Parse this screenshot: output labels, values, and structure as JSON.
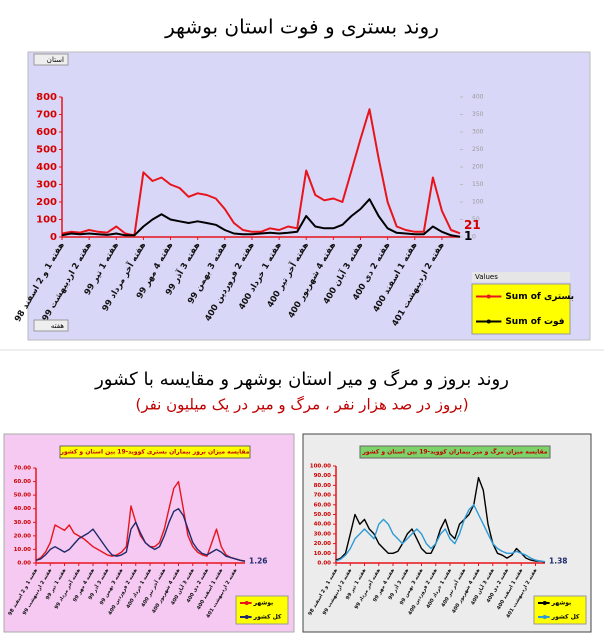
{
  "header": {
    "title": "روند بستری و فوت استان بوشهر"
  },
  "section2": {
    "title": "روند بروز و مرگ و میر استان بوشهر و مقایسه با کشور",
    "subtitle": "(بروز در صد هزار نفر ، مرگ و میر در یک میلیون نفر)"
  },
  "chart_data": [
    {
      "type": "line",
      "filter_label": "استان",
      "legend_title": "Values",
      "x_axis_label": "هفته",
      "categories": [
        "هفته 1 و 2 اسفند 98",
        null,
        null,
        "هفته 2 اردیبهشت 99",
        null,
        null,
        "هفته 1 تیر 99",
        null,
        null,
        "هفته آخر مرداد 99",
        null,
        null,
        "هفته 4 مهر 99",
        null,
        null,
        "هفته 3 آذر 99",
        null,
        null,
        "هفته 3 بهمن 99",
        null,
        null,
        "هفته 2 فروردین 400",
        null,
        null,
        "هفته 1 خرداد 400",
        null,
        null,
        "هفته آخر تیر 400",
        null,
        null,
        "هفته 4 شهریور 400",
        null,
        null,
        "هفته 3 آبان 400",
        null,
        null,
        "هفته 2 دی 400",
        null,
        null,
        "هفته 1 اسفند 400",
        null,
        null,
        "هفته 2 اردیبهشت 401",
        null,
        null
      ],
      "ylim": [
        0,
        800
      ],
      "yticks": [
        0,
        100,
        200,
        300,
        400,
        500,
        600,
        700,
        800
      ],
      "y2lim": [
        0,
        400
      ],
      "y2ticks": [
        0,
        50,
        100,
        150,
        200,
        250,
        300,
        350,
        400
      ],
      "series": [
        {
          "name": "Sum of بستری",
          "color": "#e8141c",
          "end_label": true,
          "values": [
            20,
            30,
            25,
            40,
            30,
            25,
            60,
            20,
            10,
            370,
            320,
            340,
            300,
            280,
            230,
            250,
            240,
            220,
            160,
            80,
            40,
            30,
            30,
            50,
            40,
            60,
            50,
            380,
            240,
            210,
            220,
            200,
            380,
            560,
            730,
            450,
            200,
            60,
            40,
            30,
            30,
            340,
            150,
            40,
            21
          ]
        },
        {
          "name": "Sum of فوت",
          "color": "#000000",
          "axis": "y2",
          "end_label": true,
          "values": [
            5,
            10,
            8,
            10,
            8,
            6,
            10,
            5,
            5,
            30,
            50,
            65,
            50,
            45,
            40,
            45,
            40,
            35,
            20,
            10,
            8,
            8,
            10,
            12,
            10,
            12,
            15,
            60,
            30,
            25,
            25,
            35,
            60,
            80,
            108,
            60,
            25,
            12,
            10,
            8,
            8,
            30,
            15,
            5,
            1
          ]
        }
      ]
    },
    {
      "type": "line",
      "title": "مقایسه میزان بروز بیماران بستری کووید-19 بین استان و کشور",
      "categories": [
        "هفته 1 و 2 اسفند 98",
        null,
        null,
        "هفته 2 اردیبهشت 99",
        null,
        null,
        "هفته 1 تیر 99",
        null,
        null,
        "هفته آخر مرداد 99",
        null,
        null,
        "هفته 4 مهر 99",
        null,
        null,
        "هفته 3 آذر 99",
        null,
        null,
        "هفته 3 بهمن 99",
        null,
        null,
        "هفته 2 فروردین 400",
        null,
        null,
        "هفته 1 خرداد 400",
        null,
        null,
        "هفته آخر تیر 400",
        null,
        null,
        "هفته 4 شهریور 400",
        null,
        null,
        "هفته 3 آبان 400",
        null,
        null,
        "هفته 2 دی 400",
        null,
        null,
        "هفته 1 اسفند 400",
        null,
        null,
        "هفته 2 اردیبهشت 401",
        null,
        null
      ],
      "ylim": [
        0,
        70
      ],
      "yticks": [
        {
          "value": 0,
          "label": "0.00"
        },
        {
          "value": 10,
          "label": "10.00"
        },
        {
          "value": 20,
          "label": "20.00"
        },
        {
          "value": 30,
          "label": "30.00"
        },
        {
          "value": 40,
          "label": "40.00"
        },
        {
          "value": 50,
          "label": "50.00"
        },
        {
          "value": 60,
          "label": "60.00"
        },
        {
          "value": 70,
          "label": "70.00"
        }
      ],
      "series": [
        {
          "name": "بوشهر",
          "color": "#e8141c",
          "values": [
            2,
            4,
            8,
            15,
            28,
            26,
            24,
            28,
            22,
            20,
            18,
            15,
            12,
            10,
            8,
            6,
            5,
            6,
            8,
            12,
            42,
            30,
            20,
            15,
            12,
            12,
            15,
            25,
            40,
            55,
            60,
            40,
            20,
            12,
            8,
            6,
            5,
            15,
            25,
            12,
            6,
            4,
            3,
            2,
            1.5
          ]
        },
        {
          "name": "کل کشور",
          "color": "#1f2a6b",
          "end_label": true,
          "values": [
            2,
            3,
            6,
            10,
            12,
            10,
            8,
            10,
            14,
            18,
            20,
            22,
            25,
            20,
            15,
            10,
            6,
            5,
            6,
            8,
            25,
            30,
            22,
            15,
            12,
            10,
            12,
            20,
            30,
            38,
            40,
            35,
            25,
            15,
            10,
            7,
            6,
            8,
            10,
            8,
            5,
            4,
            3,
            2,
            1.26
          ]
        }
      ]
    },
    {
      "type": "line",
      "title": "مقایسه میزان مرگ و میر بیماران کووید-19 بین استان و کشور",
      "categories": [
        "هفته 1 و 2 اسفند 98",
        null,
        null,
        "هفته 2 اردیبهشت 99",
        null,
        null,
        "هفته 1 تیر 99",
        null,
        null,
        "هفته آخر مرداد 99",
        null,
        null,
        "هفته 4 مهر 99",
        null,
        null,
        "هفته 3 آذر 99",
        null,
        null,
        "هفته 3 بهمن 99",
        null,
        null,
        "هفته 2 فروردین 400",
        null,
        null,
        "هفته 1 خرداد 400",
        null,
        null,
        "هفته آخر تیر 400",
        null,
        null,
        "هفته 4 شهریور 400",
        null,
        null,
        "هفته 3 آبان 400",
        null,
        null,
        "هفته 2 دی 400",
        null,
        null,
        "هفته 1 اسفند 400",
        null,
        null,
        "هفته 2 اردیبهشت 401",
        null,
        null
      ],
      "ylim": [
        0,
        100
      ],
      "yticks": [
        {
          "value": 0,
          "label": "0.00"
        },
        {
          "value": 10,
          "label": "10.00"
        },
        {
          "value": 20,
          "label": "20.00"
        },
        {
          "value": 30,
          "label": "30.00"
        },
        {
          "value": 40,
          "label": "40.00"
        },
        {
          "value": 50,
          "label": "50.00"
        },
        {
          "value": 60,
          "label": "60.00"
        },
        {
          "value": 70,
          "label": "70.00"
        },
        {
          "value": 80,
          "label": "80.00"
        },
        {
          "value": 90,
          "label": "90.00"
        },
        {
          "value": 100,
          "label": "100.00"
        }
      ],
      "series": [
        {
          "name": "بوشهر",
          "color": "#000000",
          "values": [
            3,
            5,
            10,
            30,
            50,
            40,
            45,
            35,
            30,
            20,
            15,
            10,
            10,
            12,
            20,
            30,
            35,
            25,
            15,
            10,
            10,
            20,
            35,
            45,
            30,
            25,
            40,
            45,
            50,
            60,
            88,
            75,
            40,
            20,
            10,
            8,
            5,
            8,
            15,
            10,
            5,
            3,
            2,
            2,
            1
          ]
        },
        {
          "name": "کل کشور",
          "color": "#2e9bd6",
          "end_label": true,
          "values": [
            2,
            4,
            8,
            15,
            25,
            30,
            35,
            30,
            25,
            40,
            45,
            40,
            30,
            25,
            20,
            25,
            30,
            35,
            30,
            20,
            15,
            20,
            30,
            35,
            25,
            20,
            30,
            45,
            55,
            60,
            50,
            40,
            30,
            20,
            15,
            12,
            10,
            10,
            12,
            10,
            8,
            5,
            3,
            2,
            1.38
          ]
        }
      ]
    }
  ]
}
